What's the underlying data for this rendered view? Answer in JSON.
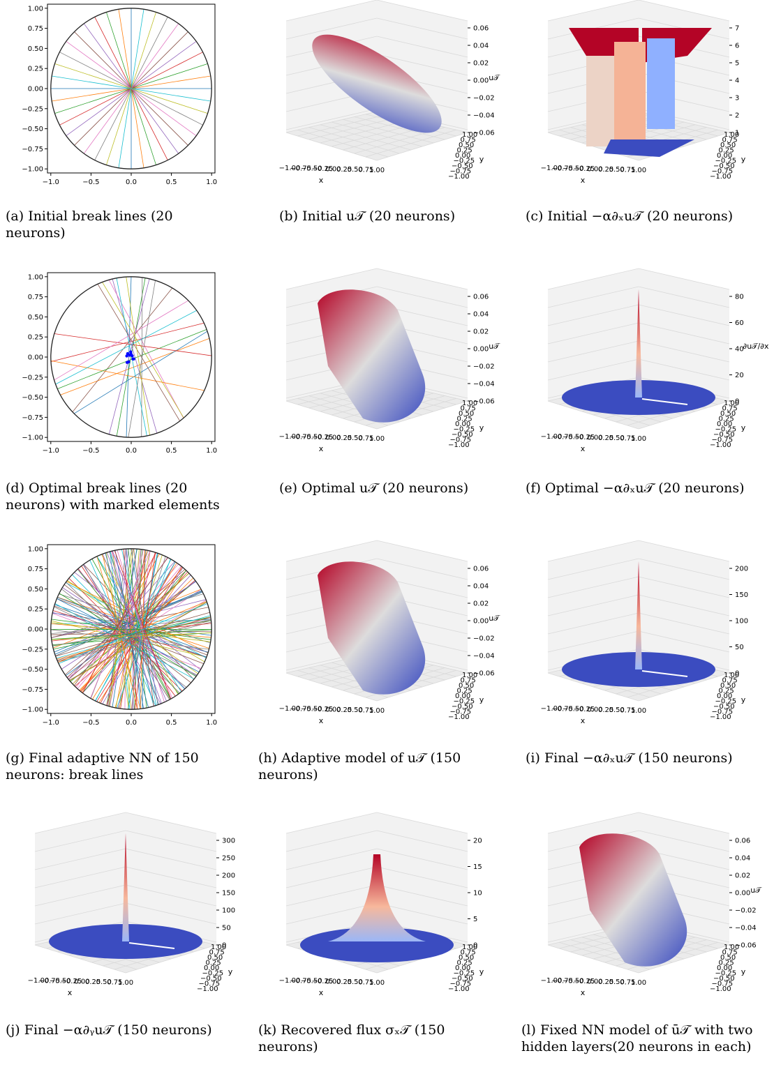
{
  "figures": [
    {
      "id": "a",
      "caption": "(a) Initial break lines (20 neurons)",
      "kind": "lines2d"
    },
    {
      "id": "b",
      "caption": "(b) Initial u𝒯 (20 neurons)",
      "kind": "surface3d",
      "zticks": [
        "0.06",
        "0.04",
        "0.02",
        "0.00",
        "−0.02",
        "−0.04",
        "−0.06"
      ],
      "zlabel": "u𝒯"
    },
    {
      "id": "c",
      "caption": "(c) Initial −α∂ₓu𝒯 (20 neurons)",
      "kind": "surface3d",
      "zticks": [
        "7",
        "6",
        "5",
        "4",
        "3",
        "2",
        "1"
      ],
      "zlabel": ""
    },
    {
      "id": "d",
      "caption": "(d) Optimal break lines (20 neurons) with marked elements",
      "kind": "lines2d"
    },
    {
      "id": "e",
      "caption": "(e) Optimal u𝒯 (20 neurons)",
      "kind": "surface3d",
      "zticks": [
        "0.06",
        "0.04",
        "0.02",
        "0.00",
        "−0.02",
        "−0.04",
        "−0.06"
      ],
      "zlabel": "u𝒯"
    },
    {
      "id": "f",
      "caption": "(f) Optimal −α∂ₓu𝒯 (20 neurons)",
      "kind": "surface3d",
      "zticks": [
        "80",
        "60",
        "40",
        "20",
        "0"
      ],
      "zlabel": "∂u𝒯/∂x"
    },
    {
      "id": "g",
      "caption": "(g) Final adaptive NN of 150 neurons: break lines",
      "kind": "lines2d"
    },
    {
      "id": "h",
      "caption": "(h) Adaptive model of u𝒯 (150 neurons)",
      "kind": "surface3d",
      "zticks": [
        "0.06",
        "0.04",
        "0.02",
        "0.00",
        "−0.02",
        "−0.04",
        "−0.06"
      ],
      "zlabel": "u𝒯"
    },
    {
      "id": "i",
      "caption": "(i) Final −α∂ₓu𝒯 (150 neurons)",
      "kind": "surface3d",
      "zticks": [
        "200",
        "150",
        "100",
        "50",
        "0"
      ],
      "zlabel": ""
    },
    {
      "id": "j",
      "caption": "(j) Final −α∂ᵧu𝒯 (150 neurons)",
      "kind": "surface3d",
      "zticks": [
        "300",
        "250",
        "200",
        "150",
        "100",
        "50",
        "0"
      ],
      "zlabel": ""
    },
    {
      "id": "k",
      "caption": "(k) Recovered flux σₓ𝒯 (150 neurons)",
      "kind": "surface3d",
      "zticks": [
        "20",
        "15",
        "10",
        "5",
        "0"
      ],
      "zlabel": ""
    },
    {
      "id": "l",
      "caption": "(l) Fixed NN model of ū𝒯 with two hidden layers(20 neurons in each)",
      "kind": "surface3d",
      "zticks": [
        "0.06",
        "0.04",
        "0.02",
        "0.00",
        "−0.02",
        "−0.04",
        "−0.06"
      ],
      "zlabel": "u𝒯"
    }
  ],
  "axis2d": {
    "xticks": [
      "−1.0",
      "−0.5",
      "0.0",
      "0.5",
      "1.0"
    ],
    "yticks": [
      "1.00",
      "0.75",
      "0.50",
      "0.25",
      "0.00",
      "−0.25",
      "−0.50",
      "−0.75",
      "−1.00"
    ]
  },
  "axis3d": {
    "xticks": [
      "−1.00",
      "−0.75",
      "−0.50",
      "−0.25",
      "0.00",
      "0.25",
      "0.50",
      "0.75",
      "1.00"
    ],
    "yticks": [
      "1.00",
      "0.75",
      "0.50",
      "0.25",
      "0.00",
      "−0.25",
      "−0.50",
      "−0.75",
      "−1.00"
    ],
    "xlabel": "x",
    "ylabel": "y"
  },
  "colors": {
    "hot": "#b40426",
    "mid": "#dddcdc",
    "cold": "#3b4cc0"
  }
}
